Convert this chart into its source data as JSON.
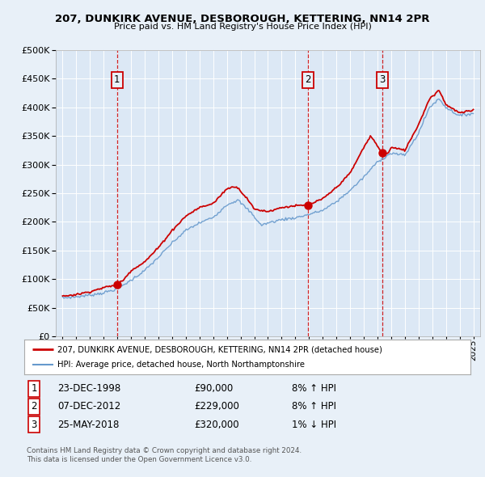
{
  "title": "207, DUNKIRK AVENUE, DESBOROUGH, KETTERING, NN14 2PR",
  "subtitle": "Price paid vs. HM Land Registry's House Price Index (HPI)",
  "background_color": "#e8f0f8",
  "plot_bg_color": "#dce8f5",
  "sale_year_nums": [
    1998.97,
    2012.92,
    2018.37
  ],
  "sale_prices": [
    90000,
    229000,
    320000
  ],
  "sale_labels": [
    "1",
    "2",
    "3"
  ],
  "legend_label_red": "207, DUNKIRK AVENUE, DESBOROUGH, KETTERING, NN14 2PR (detached house)",
  "legend_label_blue": "HPI: Average price, detached house, North Northamptonshire",
  "footer1": "Contains HM Land Registry data © Crown copyright and database right 2024.",
  "footer2": "This data is licensed under the Open Government Licence v3.0.",
  "table_rows": [
    [
      "1",
      "23-DEC-1998",
      "£90,000",
      "8% ↑ HPI"
    ],
    [
      "2",
      "07-DEC-2012",
      "£229,000",
      "8% ↑ HPI"
    ],
    [
      "3",
      "25-MAY-2018",
      "£320,000",
      "1% ↓ HPI"
    ]
  ],
  "ylim": [
    0,
    500000
  ],
  "yticks": [
    0,
    50000,
    100000,
    150000,
    200000,
    250000,
    300000,
    350000,
    400000,
    450000,
    500000
  ],
  "xlim_min": 1994.5,
  "xlim_max": 2025.5,
  "red_color": "#cc0000",
  "blue_color": "#6699cc",
  "vline_color": "#cc0000",
  "hpi_anchors_t": [
    1995.0,
    1996.0,
    1997.0,
    1998.0,
    1999.0,
    2000.0,
    2001.0,
    2002.0,
    2003.0,
    2004.0,
    2005.0,
    2006.0,
    2007.0,
    2007.8,
    2008.8,
    2009.5,
    2010.0,
    2011.0,
    2012.0,
    2013.0,
    2014.0,
    2015.0,
    2016.0,
    2017.0,
    2018.0,
    2019.0,
    2020.0,
    2021.0,
    2021.8,
    2022.5,
    2023.0,
    2024.0,
    2025.0
  ],
  "hpi_anchors_v": [
    67000,
    69000,
    72000,
    76000,
    83000,
    98000,
    115000,
    138000,
    163000,
    185000,
    198000,
    208000,
    230000,
    238000,
    215000,
    194000,
    198000,
    204000,
    207000,
    213000,
    220000,
    235000,
    255000,
    278000,
    305000,
    320000,
    316000,
    355000,
    400000,
    415000,
    400000,
    385000,
    390000
  ],
  "red_anchors_t": [
    1995.0,
    1996.0,
    1997.0,
    1998.0,
    1998.97,
    1999.5,
    2000.0,
    2001.0,
    2002.0,
    2003.0,
    2004.0,
    2005.0,
    2006.0,
    2007.0,
    2007.7,
    2008.5,
    2009.0,
    2010.0,
    2011.0,
    2012.0,
    2012.92,
    2013.5,
    2014.0,
    2015.0,
    2016.0,
    2017.0,
    2017.5,
    2018.37,
    2018.8,
    2019.0,
    2020.0,
    2021.0,
    2021.8,
    2022.5,
    2023.0,
    2024.0,
    2025.0
  ],
  "red_anchors_v": [
    70000,
    73000,
    78000,
    85000,
    90000,
    100000,
    115000,
    130000,
    155000,
    185000,
    210000,
    225000,
    232000,
    258000,
    262000,
    240000,
    222000,
    218000,
    225000,
    228000,
    229000,
    235000,
    240000,
    260000,
    285000,
    330000,
    350000,
    320000,
    320000,
    330000,
    325000,
    370000,
    415000,
    430000,
    405000,
    390000,
    395000
  ]
}
